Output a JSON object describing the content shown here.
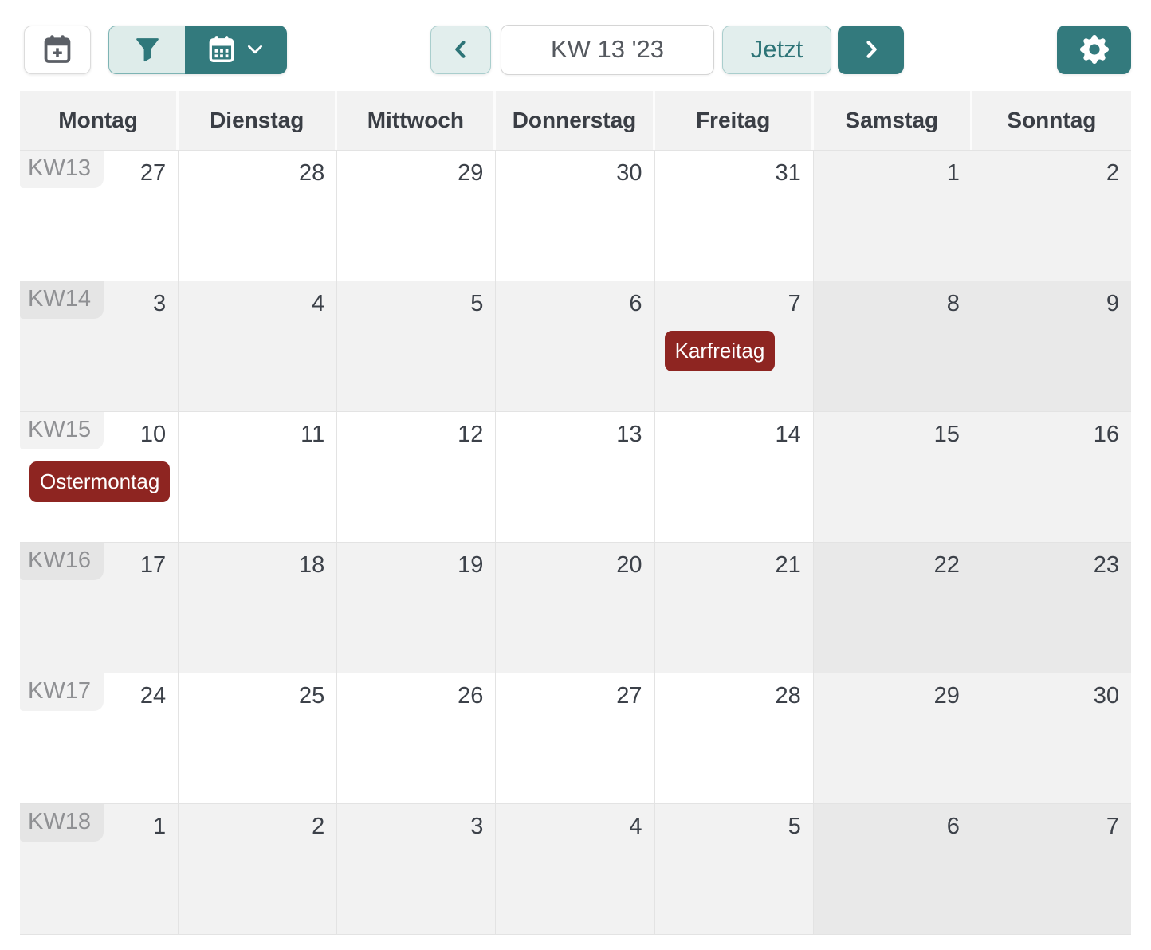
{
  "toolbar": {
    "add_event_icon": "calendar-plus-icon",
    "filter_icon": "funnel-icon",
    "view_icon": "calendar-icon",
    "view_dropdown_icon": "chevron-down-icon",
    "prev_icon": "chevron-left-icon",
    "period_value": "KW 13 '23",
    "now_label": "Jetzt",
    "next_icon": "chevron-right-icon",
    "settings_icon": "gear-icon"
  },
  "colors": {
    "teal": "#337a7d",
    "teal_light_bg": "#e2eeed",
    "teal_border": "#a9cecd",
    "event_red": "#8e2521",
    "header_bg": "#f2f2f2",
    "grid_line": "#e3e3e3",
    "row_gray": "#f2f2f2",
    "weekend_gray_on_white": "#f2f2f2",
    "weekend_gray_on_gray": "#e9e9e9",
    "text_dark": "#3c4149",
    "kw_text": "#8f9093"
  },
  "calendar": {
    "day_headers": [
      "Montag",
      "Dienstag",
      "Mittwoch",
      "Donnerstag",
      "Freitag",
      "Samstag",
      "Sonntag"
    ],
    "weeks": [
      {
        "label": "KW13",
        "shade": "white",
        "days": [
          {
            "num": "27"
          },
          {
            "num": "28"
          },
          {
            "num": "29"
          },
          {
            "num": "30"
          },
          {
            "num": "31"
          },
          {
            "num": "1"
          },
          {
            "num": "2"
          }
        ]
      },
      {
        "label": "KW14",
        "shade": "gray",
        "days": [
          {
            "num": "3"
          },
          {
            "num": "4"
          },
          {
            "num": "5"
          },
          {
            "num": "6"
          },
          {
            "num": "7",
            "event": "Karfreitag"
          },
          {
            "num": "8"
          },
          {
            "num": "9"
          }
        ]
      },
      {
        "label": "KW15",
        "shade": "white",
        "days": [
          {
            "num": "10",
            "event": "Ostermontag"
          },
          {
            "num": "11"
          },
          {
            "num": "12"
          },
          {
            "num": "13"
          },
          {
            "num": "14"
          },
          {
            "num": "15"
          },
          {
            "num": "16"
          }
        ]
      },
      {
        "label": "KW16",
        "shade": "gray",
        "days": [
          {
            "num": "17"
          },
          {
            "num": "18"
          },
          {
            "num": "19"
          },
          {
            "num": "20"
          },
          {
            "num": "21"
          },
          {
            "num": "22"
          },
          {
            "num": "23"
          }
        ]
      },
      {
        "label": "KW17",
        "shade": "white",
        "days": [
          {
            "num": "24"
          },
          {
            "num": "25"
          },
          {
            "num": "26"
          },
          {
            "num": "27"
          },
          {
            "num": "28"
          },
          {
            "num": "29"
          },
          {
            "num": "30"
          }
        ]
      },
      {
        "label": "KW18",
        "shade": "gray",
        "days": [
          {
            "num": "1"
          },
          {
            "num": "2"
          },
          {
            "num": "3"
          },
          {
            "num": "4"
          },
          {
            "num": "5"
          },
          {
            "num": "6"
          },
          {
            "num": "7"
          }
        ]
      }
    ]
  }
}
